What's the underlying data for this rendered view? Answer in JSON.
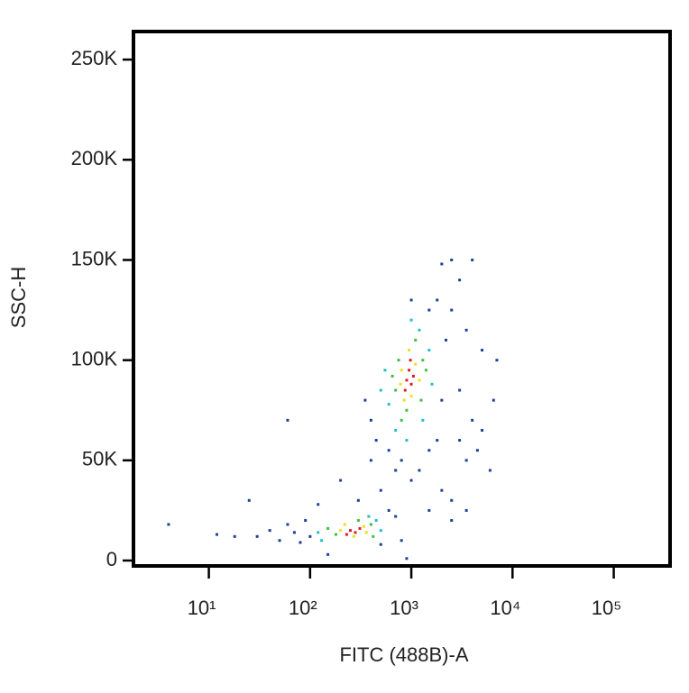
{
  "chart_data": {
    "type": "scatter",
    "x_label": "FITC (488B)-A",
    "y_label": "SSC-H",
    "xscale": "log",
    "xlim": [
      1.8,
      360000
    ],
    "xticks": [
      {
        "value": 10,
        "label": "10¹"
      },
      {
        "value": 100,
        "label": "10²"
      },
      {
        "value": 1000,
        "label": "10³"
      },
      {
        "value": 10000,
        "label": "10⁴"
      },
      {
        "value": 100000,
        "label": "10⁵"
      }
    ],
    "ylim": [
      -2700,
      264000
    ],
    "yticks": [
      0,
      {
        "value": 50000,
        "label": "50K"
      },
      {
        "value": 100000,
        "label": "100K"
      },
      {
        "value": 150000,
        "label": "150K"
      },
      {
        "value": 200000,
        "label": "200K"
      },
      {
        "value": 250000,
        "label": "250K"
      }
    ],
    "series": [
      {
        "color": "#1f3f9a",
        "x": [
          30,
          40,
          50,
          60,
          80,
          90,
          100,
          70,
          600,
          700,
          800,
          500,
          4,
          12,
          18,
          25,
          60,
          200,
          300,
          400,
          500,
          700,
          1000,
          1500,
          2000,
          2500,
          3000,
          3500,
          4000,
          4500,
          5000,
          6000,
          6500,
          7000,
          5000,
          3500,
          2500,
          2000,
          3000,
          4000,
          1800,
          2500,
          400,
          450,
          350,
          2000,
          2200,
          1800,
          600,
          800,
          1200,
          3500,
          2500,
          1500,
          900,
          150,
          120,
          1000,
          1500,
          3000
        ],
        "y": [
          12000,
          15000,
          10000,
          18000,
          9000,
          20000,
          12000,
          14000,
          25000,
          22000,
          10000,
          8000,
          18000,
          13000,
          12000,
          30000,
          70000,
          40000,
          30000,
          50000,
          35000,
          45000,
          40000,
          55000,
          35000,
          30000,
          60000,
          50000,
          70000,
          55000,
          65000,
          45000,
          80000,
          100000,
          105000,
          115000,
          150000,
          148000,
          140000,
          150000,
          130000,
          125000,
          70000,
          60000,
          80000,
          80000,
          110000,
          60000,
          55000,
          50000,
          45000,
          25000,
          20000,
          25000,
          1000,
          3000,
          28000,
          130000,
          125000,
          85000
        ]
      },
      {
        "color": "#1fbfd0",
        "x": [
          120,
          450,
          500,
          130,
          380,
          600,
          1500,
          1200,
          700,
          550,
          1600,
          900,
          1000,
          500,
          1300
        ],
        "y": [
          14000,
          20000,
          15000,
          10000,
          22000,
          78000,
          105000,
          115000,
          65000,
          95000,
          88000,
          60000,
          120000,
          85000,
          70000
        ]
      },
      {
        "color": "#3fbf3f",
        "x": [
          180,
          400,
          300,
          150,
          420,
          700,
          1300,
          1100,
          900,
          750,
          1250,
          650,
          1400,
          800
        ],
        "y": [
          13000,
          18000,
          20000,
          16000,
          12000,
          85000,
          100000,
          110000,
          75000,
          100000,
          80000,
          92000,
          95000,
          70000
        ]
      },
      {
        "color": "#efdf1f",
        "x": [
          200,
          340,
          270,
          360,
          220,
          800,
          1100,
          850,
          1200,
          950,
          1000,
          780
        ],
        "y": [
          15000,
          17000,
          12000,
          14000,
          18000,
          95000,
          98000,
          80000,
          90000,
          105000,
          82000,
          88000
        ]
      },
      {
        "color": "#df1f1f",
        "x": [
          250,
          280,
          310,
          230,
          900,
          950,
          1000,
          1050,
          870,
          980
        ],
        "y": [
          15000,
          14000,
          16000,
          13000,
          90000,
          95000,
          88000,
          92000,
          85000,
          100000
        ]
      }
    ]
  }
}
